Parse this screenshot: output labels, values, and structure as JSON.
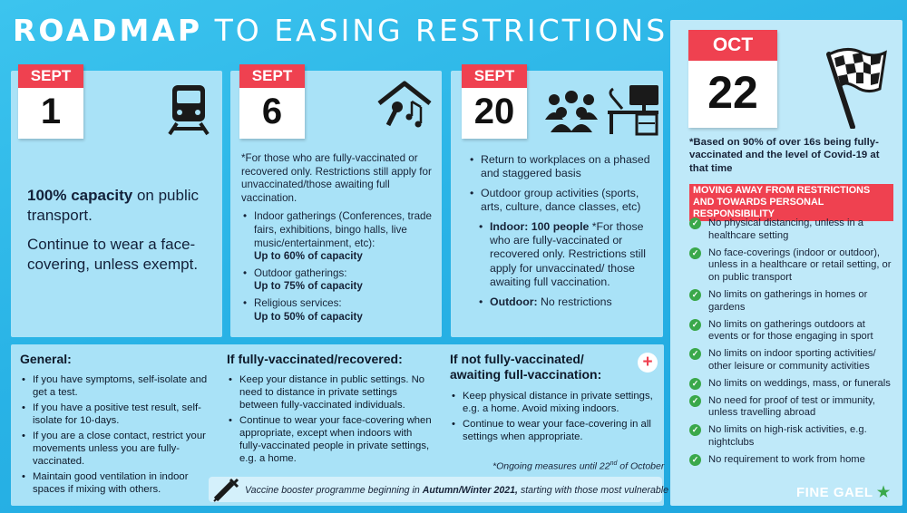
{
  "title": {
    "bold": "ROADMAP",
    "rest": "TO EASING RESTRICTIONS"
  },
  "colors": {
    "accent_red": "#ef4150",
    "panel": "#a9e2f7",
    "check_green": "#3aa84a"
  },
  "phase1": {
    "month": "SEPT",
    "day": "1",
    "icon": "train-icon",
    "capacity_bold": "100% capacity",
    "capacity_rest": " on public transport.",
    "note": "Continue to wear a face-covering, unless exempt."
  },
  "phase2": {
    "month": "SEPT",
    "day": "6",
    "icon": "music-house-icon",
    "intro": "*For those who are fully-vaccinated or recovered only. Restrictions still apply for unvaccinated/those awaiting full vaccination.",
    "items": [
      {
        "text": "Indoor gatherings (Conferences, trade fairs, exhibitions, bingo halls, live music/entertainment, etc):",
        "bold": "Up to 60% of capacity"
      },
      {
        "text": "Outdoor gatherings:",
        "bold": "Up to 75% of capacity"
      },
      {
        "text": "Religious services:",
        "bold": "Up to 50% of capacity"
      }
    ]
  },
  "phase3": {
    "month": "SEPT",
    "day": "20",
    "icons": [
      "people-group-icon",
      "desk-workstation-icon"
    ],
    "items": [
      "Return to workplaces on a phased and staggered basis",
      "Outdoor group activities (sports, arts, culture, dance classes, etc)"
    ],
    "indoor_bold": "Indoor: 100 people",
    "indoor_rest": " *For those who are fully-vaccinated or recovered only. Restrictions still apply for unvaccinated/ those awaiting full vaccination.",
    "outdoor_bold": "Outdoor:",
    "outdoor_rest": " No restrictions"
  },
  "phase4": {
    "month": "OCT",
    "day": "22",
    "icon": "checkered-flag-icon",
    "note": "*Based on 90% of over 16s being fully-vaccinated and the level of Covid-19 at that time",
    "banner": "MOVING AWAY FROM RESTRICTIONS AND TOWARDS PERSONAL RESPONSIBILITY",
    "checks": [
      "No physical distancing, unless in a healthcare setting",
      "No face-coverings (indoor or outdoor), unless in a healthcare or retail setting, or on public transport",
      "No limits on gatherings in homes or gardens",
      "No limits on gatherings outdoors at events or for those engaging in sport",
      "No limits on indoor sporting activities/ other leisure or community activities",
      "No limits on weddings, mass, or funerals",
      "No need for proof of test or immunity, unless travelling abroad",
      "No limits on high-risk activities, e.g. nightclubs",
      "No requirement to work from home"
    ]
  },
  "general": {
    "heading": "General:",
    "items": [
      "If you have symptoms, self-isolate and get a test.",
      "If you have a positive test result, self-isolate for 10-days.",
      "If you are a close contact, restrict your movements unless you are fully-vaccinated.",
      "Maintain good ventilation in indoor spaces if mixing with others."
    ]
  },
  "vaccinated": {
    "heading": "If fully-vaccinated/recovered:",
    "items": [
      "Keep your distance in public settings. No need to distance in private settings between fully-vaccinated individuals.",
      "Continue to wear your face-covering when appropriate, except when indoors with fully-vaccinated people in private settings, e.g. a home."
    ]
  },
  "unvaccinated": {
    "heading": "If not fully-vaccinated/ awaiting full-vaccination:",
    "items": [
      "Keep physical distance in private settings, e.g. a home. Avoid mixing indoors.",
      "Continue to wear your face-covering in all settings when appropriate."
    ],
    "ongoing": "*Ongoing measures until 22",
    "ongoing_sup": "nd",
    "ongoing_end": " of October"
  },
  "booster": {
    "pre": "Vaccine booster programme beginning in ",
    "bold": "Autumn/Winter 2021,",
    "post": " starting with those most vulnerable"
  },
  "brand": "FINE GAEL"
}
